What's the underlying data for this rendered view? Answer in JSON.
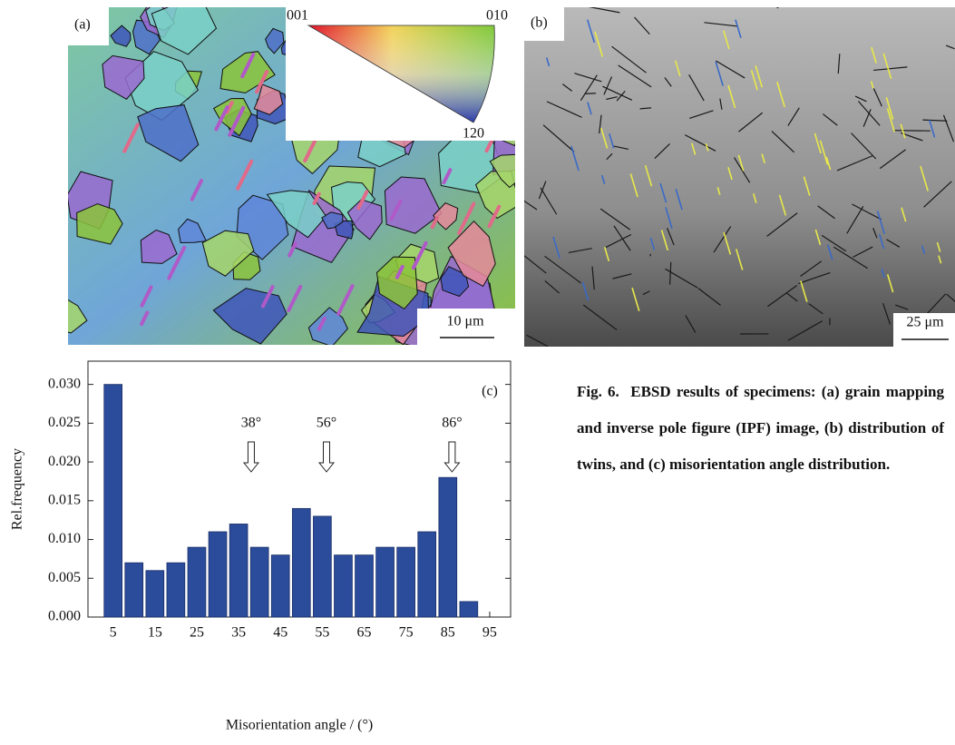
{
  "panels": {
    "a": {
      "label": "(a)",
      "scale_bar": "10 μm",
      "ipf_labels": [
        "001",
        "010",
        "120"
      ]
    },
    "b": {
      "label": "(b)",
      "scale_bar": "25 μm"
    }
  },
  "chart_data": {
    "type": "bar",
    "panel_label": "(c)",
    "x": [
      5,
      10,
      15,
      20,
      25,
      30,
      35,
      40,
      45,
      50,
      55,
      60,
      65,
      70,
      75,
      80,
      85,
      90
    ],
    "values": [
      0.03,
      0.007,
      0.006,
      0.007,
      0.009,
      0.011,
      0.012,
      0.009,
      0.008,
      0.014,
      0.013,
      0.008,
      0.008,
      0.009,
      0.009,
      0.011,
      0.018,
      0.002
    ],
    "color": "#2b4c9b",
    "xlim": [
      -1,
      100
    ],
    "xticks": [
      5,
      15,
      25,
      35,
      45,
      55,
      65,
      75,
      85,
      95
    ],
    "ylim": [
      0,
      0.033
    ],
    "yticks": [
      {
        "value": 0,
        "label": "0.000"
      },
      0.005,
      {
        "value": 0.01,
        "label": "0.010"
      },
      0.015,
      {
        "value": 0.02,
        "label": "0.020"
      },
      0.025,
      {
        "value": 0.03,
        "label": "0.030"
      }
    ],
    "xlabel": "Misorientation angle / (°)",
    "ylabel": "Rel.frequency",
    "annotations": [
      {
        "text": "38°",
        "x": 38
      },
      {
        "text": "56°",
        "x": 56
      },
      {
        "text": "86°",
        "x": 86
      }
    ]
  },
  "caption": {
    "title": "Fig. 6.",
    "text": "EBSD results of specimens: (a) grain mapping and inverse pole figure (IPF) image, (b) distribution of twins, and (c) misorientation angle distribution."
  }
}
